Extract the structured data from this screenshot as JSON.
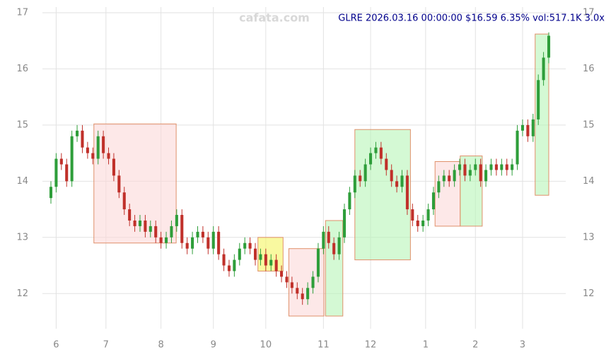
{
  "chart_data": {
    "type": "candlestick",
    "title": "GLRE 2026.03.16 00:00:00 $16.59 6.35% vol:517.1K 3.0x",
    "watermark": "cafata.com",
    "up_color": "#2e9e3a",
    "down_color": "#c0302a",
    "grid": true,
    "xlim": [
      0,
      95
    ],
    "xticks": [
      {
        "value": 1,
        "label": "6"
      },
      {
        "value": 10.5,
        "label": "7"
      },
      {
        "value": 21,
        "label": "8"
      },
      {
        "value": 31,
        "label": "9"
      },
      {
        "value": 41,
        "label": "10"
      },
      {
        "value": 52,
        "label": "11"
      },
      {
        "value": 61,
        "label": "12"
      },
      {
        "value": 71.5,
        "label": "1"
      },
      {
        "value": 81,
        "label": "2"
      },
      {
        "value": 90,
        "label": "3"
      }
    ],
    "ylim": [
      11.5,
      17.1
    ],
    "yticks": [
      12,
      13,
      14,
      15,
      16,
      17
    ],
    "open": [
      13.7,
      13.9,
      14.4,
      14.3,
      14.0,
      14.8,
      14.9,
      14.6,
      14.5,
      14.4,
      14.8,
      14.5,
      14.4,
      14.1,
      13.8,
      13.5,
      13.3,
      13.2,
      13.3,
      13.1,
      13.2,
      13.0,
      12.9,
      13.0,
      13.2,
      13.4,
      12.9,
      12.8,
      13.0,
      13.1,
      13.0,
      12.8,
      13.1,
      12.7,
      12.5,
      12.4,
      12.6,
      12.8,
      12.9,
      12.8,
      12.6,
      12.7,
      12.5,
      12.6,
      12.4,
      12.3,
      12.2,
      12.1,
      12.0,
      11.9,
      12.1,
      12.3,
      12.8,
      13.1,
      12.9,
      12.7,
      13.0,
      13.5,
      13.8,
      14.1,
      14.0,
      14.3,
      14.5,
      14.6,
      14.4,
      14.2,
      14.0,
      13.9,
      14.1,
      13.5,
      13.3,
      13.2,
      13.3,
      13.5,
      13.8,
      14.0,
      14.1,
      14.0,
      14.2,
      14.3,
      14.1,
      14.2,
      14.3,
      14.0,
      14.2,
      14.3,
      14.2,
      14.3,
      14.2,
      14.3,
      14.9,
      15.0,
      14.8,
      15.1,
      15.8,
      16.2
    ],
    "close": [
      13.9,
      14.4,
      14.3,
      14.0,
      14.8,
      14.9,
      14.6,
      14.5,
      14.4,
      14.8,
      14.5,
      14.4,
      14.1,
      13.8,
      13.5,
      13.3,
      13.2,
      13.3,
      13.1,
      13.2,
      13.0,
      12.9,
      13.0,
      13.2,
      13.4,
      12.9,
      12.8,
      13.0,
      13.1,
      13.0,
      12.8,
      13.1,
      12.7,
      12.5,
      12.4,
      12.6,
      12.8,
      12.9,
      12.8,
      12.6,
      12.7,
      12.5,
      12.6,
      12.4,
      12.3,
      12.2,
      12.1,
      12.0,
      11.9,
      12.1,
      12.3,
      12.8,
      13.1,
      12.9,
      12.7,
      13.0,
      13.5,
      13.8,
      14.1,
      14.0,
      14.3,
      14.5,
      14.6,
      14.4,
      14.2,
      14.0,
      13.9,
      14.1,
      13.5,
      13.3,
      13.2,
      13.3,
      13.5,
      13.8,
      14.0,
      14.1,
      14.0,
      14.2,
      14.3,
      14.1,
      14.2,
      14.3,
      14.0,
      14.2,
      14.3,
      14.2,
      14.3,
      14.2,
      14.3,
      14.9,
      15.0,
      14.8,
      15.1,
      15.8,
      16.2,
      16.59
    ],
    "high": [
      14.0,
      14.5,
      14.5,
      14.4,
      14.9,
      15.0,
      15.0,
      14.7,
      14.6,
      14.9,
      14.9,
      14.6,
      14.5,
      14.2,
      13.9,
      13.6,
      13.4,
      13.4,
      13.4,
      13.3,
      13.3,
      13.1,
      13.1,
      13.3,
      13.5,
      13.5,
      13.0,
      13.1,
      13.2,
      13.2,
      13.1,
      13.2,
      13.2,
      12.8,
      12.6,
      12.7,
      12.9,
      13.0,
      13.0,
      12.9,
      12.8,
      12.8,
      12.7,
      12.7,
      12.5,
      12.4,
      12.3,
      12.2,
      12.1,
      12.2,
      12.4,
      12.9,
      13.2,
      13.2,
      13.0,
      13.1,
      13.6,
      13.9,
      14.2,
      14.2,
      14.4,
      14.6,
      14.7,
      14.7,
      14.5,
      14.3,
      14.1,
      14.2,
      14.2,
      13.6,
      13.4,
      13.4,
      13.6,
      13.9,
      14.1,
      14.2,
      14.2,
      14.3,
      14.4,
      14.4,
      14.3,
      14.4,
      14.4,
      14.3,
      14.4,
      14.4,
      14.4,
      14.4,
      14.4,
      15.0,
      15.1,
      15.1,
      15.2,
      15.9,
      16.3,
      16.65
    ],
    "low": [
      13.6,
      13.8,
      14.2,
      13.9,
      13.9,
      14.7,
      14.5,
      14.4,
      14.3,
      14.3,
      14.4,
      14.3,
      14.0,
      13.7,
      13.4,
      13.2,
      13.1,
      13.1,
      13.0,
      13.0,
      12.9,
      12.8,
      12.8,
      12.9,
      13.1,
      12.8,
      12.7,
      12.7,
      12.9,
      12.9,
      12.7,
      12.7,
      12.6,
      12.4,
      12.3,
      12.3,
      12.5,
      12.7,
      12.7,
      12.5,
      12.5,
      12.4,
      12.4,
      12.3,
      12.2,
      12.1,
      12.0,
      11.9,
      11.8,
      11.8,
      12.0,
      12.2,
      12.7,
      12.8,
      12.6,
      12.6,
      12.9,
      13.4,
      13.7,
      13.9,
      13.9,
      14.2,
      14.4,
      14.3,
      14.1,
      13.9,
      13.8,
      13.8,
      13.4,
      13.2,
      13.1,
      13.1,
      13.2,
      13.4,
      13.7,
      13.9,
      13.9,
      13.9,
      14.1,
      14.0,
      14.0,
      14.1,
      13.9,
      13.9,
      14.1,
      14.1,
      14.1,
      14.1,
      14.1,
      14.2,
      14.8,
      14.7,
      14.7,
      15.0,
      15.7,
      16.1
    ],
    "zones": [
      {
        "x0": 8.2,
        "x1": 23.9,
        "low": 12.9,
        "high": 15.02,
        "color": "#fbd9d9"
      },
      {
        "x0": 39.5,
        "x1": 44.3,
        "low": 12.4,
        "high": 13.0,
        "color": "#f5f560"
      },
      {
        "x0": 45.4,
        "x1": 52.1,
        "low": 11.6,
        "high": 12.8,
        "color": "#fbd9d9"
      },
      {
        "x0": 52.4,
        "x1": 55.7,
        "low": 11.6,
        "high": 13.3,
        "color": "#b8f5b8"
      },
      {
        "x0": 58.0,
        "x1": 68.6,
        "low": 12.6,
        "high": 14.92,
        "color": "#b8f5b8"
      },
      {
        "x0": 73.3,
        "x1": 78.1,
        "low": 13.2,
        "high": 14.35,
        "color": "#fbd9d9"
      },
      {
        "x0": 78.1,
        "x1": 82.3,
        "low": 13.2,
        "high": 14.45,
        "color": "#b8f5b8"
      },
      {
        "x0": 92.4,
        "x1": 95.0,
        "low": 13.75,
        "high": 16.62,
        "color": "#b8f5b8"
      }
    ]
  }
}
